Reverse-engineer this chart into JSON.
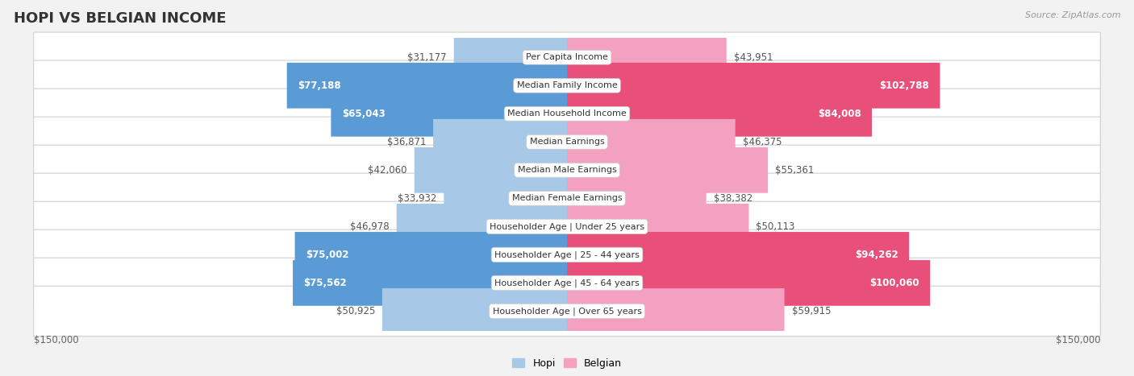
{
  "title": "HOPI VS BELGIAN INCOME",
  "source": "Source: ZipAtlas.com",
  "categories": [
    "Per Capita Income",
    "Median Family Income",
    "Median Household Income",
    "Median Earnings",
    "Median Male Earnings",
    "Median Female Earnings",
    "Householder Age | Under 25 years",
    "Householder Age | 25 - 44 years",
    "Householder Age | 45 - 64 years",
    "Householder Age | Over 65 years"
  ],
  "hopi_values": [
    31177,
    77188,
    65043,
    36871,
    42060,
    33932,
    46978,
    75002,
    75562,
    50925
  ],
  "belgian_values": [
    43951,
    102788,
    84008,
    46375,
    55361,
    38382,
    50113,
    94262,
    100060,
    59915
  ],
  "hopi_labels": [
    "$31,177",
    "$77,188",
    "$65,043",
    "$36,871",
    "$42,060",
    "$33,932",
    "$46,978",
    "$75,002",
    "$75,562",
    "$50,925"
  ],
  "belgian_labels": [
    "$43,951",
    "$102,788",
    "$84,008",
    "$46,375",
    "$55,361",
    "$38,382",
    "$50,113",
    "$94,262",
    "$100,060",
    "$59,915"
  ],
  "hopi_color_light": "#a8c8e8",
  "hopi_color_dark": "#5b9bd5",
  "belgian_color_light": "#f4a0c0",
  "belgian_color_dark": "#e8507a",
  "hopi_dark_threshold": 60000,
  "belgian_dark_threshold": 80000,
  "max_value": 150000,
  "background_color": "#f2f2f2",
  "row_bg_light": "#fafafa",
  "row_bg_dark": "#f0f0f0",
  "title_fontsize": 13,
  "bar_label_fontsize": 8.5,
  "cat_label_fontsize": 8,
  "axis_label": "$150,000"
}
